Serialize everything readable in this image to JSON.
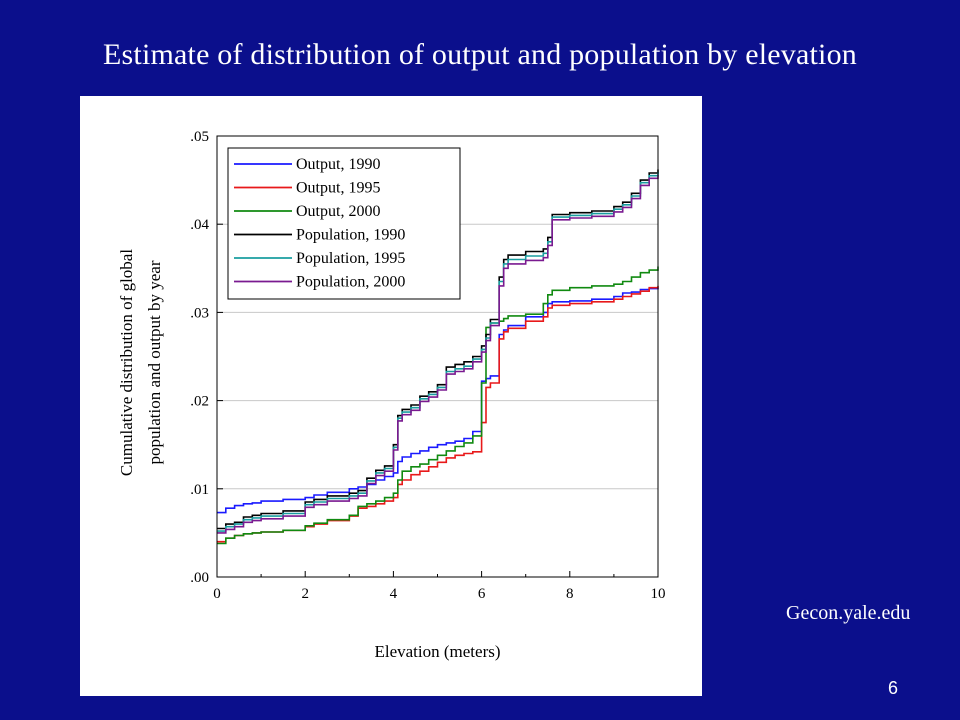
{
  "slide": {
    "title": "Estimate of distribution of output and population by elevation",
    "source": "Gecon.yale.edu",
    "page_number": "6"
  },
  "chart_data": {
    "type": "line",
    "title": "",
    "xlabel": "Elevation (meters)",
    "ylabel_lines": [
      "Cumulative distribution of global",
      "population and output by year"
    ],
    "xlim": [
      0,
      10
    ],
    "ylim": [
      0,
      0.05
    ],
    "x_ticks": [
      0,
      2,
      4,
      6,
      8,
      10
    ],
    "x_tick_labels": [
      "0",
      "2",
      "4",
      "6",
      "8",
      "10"
    ],
    "y_ticks": [
      0,
      0.01,
      0.02,
      0.03,
      0.04,
      0.05
    ],
    "y_tick_labels": [
      ".00",
      ".01",
      ".02",
      ".03",
      ".04",
      ".05"
    ],
    "grid": true,
    "legend_position": "top-left",
    "x": [
      0,
      0.2,
      0.4,
      0.6,
      0.8,
      1.0,
      1.5,
      2.0,
      2.2,
      2.5,
      3.0,
      3.2,
      3.4,
      3.6,
      3.8,
      4.0,
      4.1,
      4.2,
      4.4,
      4.6,
      4.8,
      5.0,
      5.2,
      5.4,
      5.6,
      5.8,
      6.0,
      6.1,
      6.2,
      6.4,
      6.5,
      6.6,
      7.0,
      7.4,
      7.5,
      7.6,
      8.0,
      8.5,
      9.0,
      9.2,
      9.4,
      9.6,
      9.8,
      10.0
    ],
    "series": [
      {
        "name": "Output, 1990",
        "color": "#1a1aff",
        "values": [
          0.0073,
          0.0078,
          0.0081,
          0.0083,
          0.0084,
          0.0086,
          0.0088,
          0.009,
          0.0093,
          0.0096,
          0.01,
          0.0102,
          0.0105,
          0.011,
          0.0114,
          0.0118,
          0.0131,
          0.0136,
          0.014,
          0.0143,
          0.0147,
          0.015,
          0.0152,
          0.0154,
          0.0157,
          0.0165,
          0.0222,
          0.0225,
          0.0228,
          0.0275,
          0.028,
          0.0285,
          0.0295,
          0.03,
          0.031,
          0.0312,
          0.0313,
          0.0315,
          0.0318,
          0.0322,
          0.0323,
          0.0326,
          0.0327,
          0.0328
        ]
      },
      {
        "name": "Output, 1995",
        "color": "#e8191a",
        "values": [
          0.004,
          0.0044,
          0.0047,
          0.0049,
          0.005,
          0.0051,
          0.0053,
          0.0057,
          0.006,
          0.0064,
          0.0069,
          0.0078,
          0.008,
          0.0083,
          0.0086,
          0.009,
          0.0105,
          0.011,
          0.0116,
          0.012,
          0.0125,
          0.013,
          0.0135,
          0.0138,
          0.014,
          0.0142,
          0.0175,
          0.0215,
          0.022,
          0.027,
          0.0278,
          0.0282,
          0.029,
          0.0295,
          0.0305,
          0.0308,
          0.031,
          0.0312,
          0.0315,
          0.0318,
          0.0321,
          0.0324,
          0.0328,
          0.033
        ]
      },
      {
        "name": "Output, 2000",
        "color": "#108a10",
        "values": [
          0.0038,
          0.0044,
          0.0047,
          0.0049,
          0.005,
          0.0051,
          0.0053,
          0.0058,
          0.0061,
          0.0065,
          0.007,
          0.008,
          0.0083,
          0.0086,
          0.009,
          0.0095,
          0.011,
          0.012,
          0.0125,
          0.0128,
          0.0133,
          0.0138,
          0.0143,
          0.0148,
          0.0152,
          0.016,
          0.022,
          0.0283,
          0.0288,
          0.029,
          0.0293,
          0.0296,
          0.0298,
          0.031,
          0.032,
          0.0325,
          0.0328,
          0.033,
          0.0332,
          0.0335,
          0.034,
          0.0345,
          0.0348,
          0.0352
        ]
      },
      {
        "name": "Population, 1990",
        "color": "#000000",
        "values": [
          0.0055,
          0.006,
          0.0062,
          0.0068,
          0.007,
          0.0072,
          0.0075,
          0.0085,
          0.0088,
          0.0092,
          0.0095,
          0.0098,
          0.0112,
          0.0121,
          0.0126,
          0.015,
          0.0183,
          0.019,
          0.0195,
          0.0205,
          0.021,
          0.0218,
          0.0238,
          0.0241,
          0.0244,
          0.025,
          0.0262,
          0.0275,
          0.0292,
          0.034,
          0.036,
          0.0365,
          0.0369,
          0.0372,
          0.0385,
          0.0411,
          0.0413,
          0.0415,
          0.042,
          0.0425,
          0.0435,
          0.045,
          0.0458,
          0.0462
        ]
      },
      {
        "name": "Population, 1995",
        "color": "#1a9ea0",
        "values": [
          0.0052,
          0.0057,
          0.006,
          0.0065,
          0.0067,
          0.0069,
          0.0072,
          0.0082,
          0.0085,
          0.0089,
          0.0092,
          0.0095,
          0.0109,
          0.0118,
          0.0123,
          0.0147,
          0.018,
          0.0187,
          0.0192,
          0.0202,
          0.0207,
          0.0215,
          0.0233,
          0.0236,
          0.0239,
          0.0247,
          0.0258,
          0.0271,
          0.0288,
          0.0335,
          0.0355,
          0.036,
          0.0364,
          0.0367,
          0.038,
          0.0408,
          0.041,
          0.0412,
          0.0417,
          0.0422,
          0.0432,
          0.0447,
          0.0455,
          0.0459
        ]
      },
      {
        "name": "Population, 2000",
        "color": "#7a1a90",
        "values": [
          0.005,
          0.0054,
          0.0057,
          0.0062,
          0.0064,
          0.0066,
          0.0069,
          0.0079,
          0.0082,
          0.0086,
          0.0089,
          0.0092,
          0.0106,
          0.0115,
          0.012,
          0.0144,
          0.0177,
          0.0184,
          0.0189,
          0.0199,
          0.0204,
          0.0212,
          0.023,
          0.0233,
          0.0236,
          0.0244,
          0.0255,
          0.0268,
          0.0285,
          0.033,
          0.035,
          0.0355,
          0.0359,
          0.0362,
          0.0376,
          0.0405,
          0.0407,
          0.0409,
          0.0414,
          0.0419,
          0.0429,
          0.0444,
          0.0452,
          0.0456
        ]
      }
    ]
  }
}
